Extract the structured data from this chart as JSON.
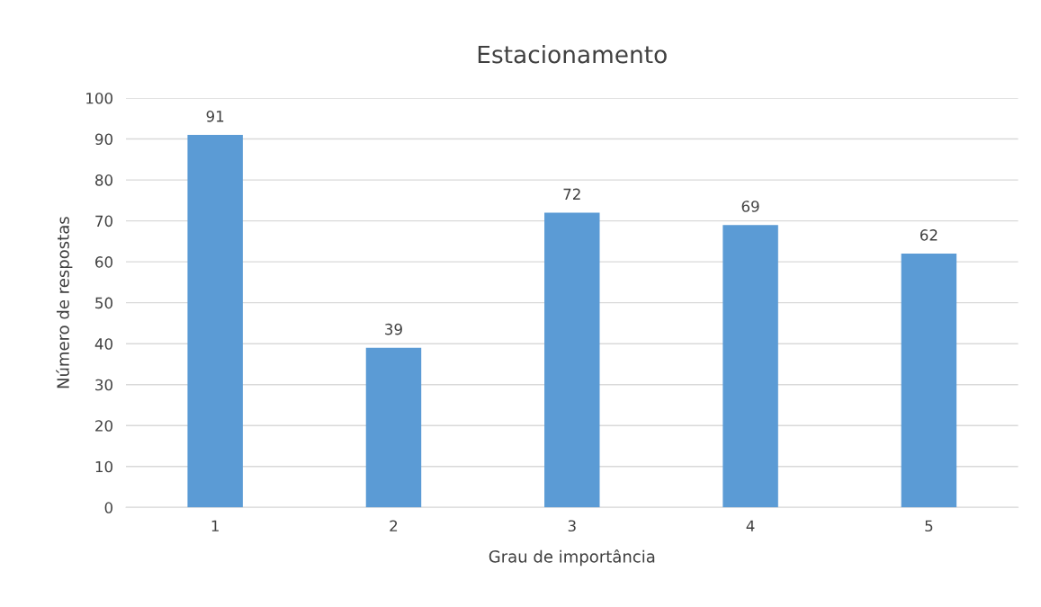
{
  "chart_data": {
    "type": "bar",
    "title": "Estacionamento",
    "xlabel": "Grau de importância",
    "ylabel": "Número de respostas",
    "categories": [
      "1",
      "2",
      "3",
      "4",
      "5"
    ],
    "values": [
      91,
      39,
      72,
      69,
      62
    ],
    "color": "#5b9bd5",
    "ylim": [
      0,
      100
    ],
    "yticks": [
      0,
      10,
      20,
      30,
      40,
      50,
      60,
      70,
      80,
      90,
      100
    ],
    "grid": "y",
    "data_labels": true
  }
}
